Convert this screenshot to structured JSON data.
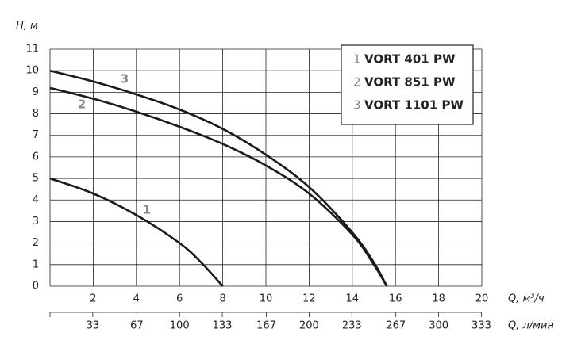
{
  "chart_data": {
    "type": "line",
    "y_label": "H, м",
    "x_label": "Q, м³/ч",
    "x2_label": "Q, л/мин",
    "xlim": [
      0,
      20
    ],
    "xticks": [
      2,
      4,
      6,
      8,
      10,
      12,
      14,
      16,
      18,
      20
    ],
    "x2lim": [
      0,
      333.33
    ],
    "x2ticks": [
      33,
      67,
      100,
      133,
      167,
      200,
      233,
      267,
      300,
      333
    ],
    "ylim": [
      0,
      11
    ],
    "yticks": [
      0,
      1,
      2,
      3,
      4,
      5,
      6,
      7,
      8,
      9,
      10,
      11
    ],
    "grid": true,
    "legend": "upper right",
    "series": [
      {
        "label": "1",
        "name": "VORT 401 PW",
        "color": "#1a1a1a",
        "x": [
          0,
          2,
          4,
          6,
          7,
          8
        ],
        "values": [
          5,
          4.3,
          3.3,
          2,
          1.1,
          0
        ]
      },
      {
        "label": "2",
        "name": "VORT 851 PW",
        "color": "#1a1a1a",
        "x": [
          0,
          2,
          4,
          6,
          8,
          10,
          12,
          14,
          15,
          15.6
        ],
        "values": [
          9.2,
          8.7,
          8.1,
          7.4,
          6.6,
          5.6,
          4.3,
          2.4,
          1,
          0
        ]
      },
      {
        "label": "3",
        "name": "VORT 1101 PW",
        "color": "#1a1a1a",
        "x": [
          0,
          2,
          4,
          6,
          8,
          10,
          12,
          14,
          15,
          15.6
        ],
        "values": [
          10,
          9.5,
          8.9,
          8.2,
          7.3,
          6.1,
          4.6,
          2.5,
          1.1,
          0
        ]
      }
    ]
  }
}
